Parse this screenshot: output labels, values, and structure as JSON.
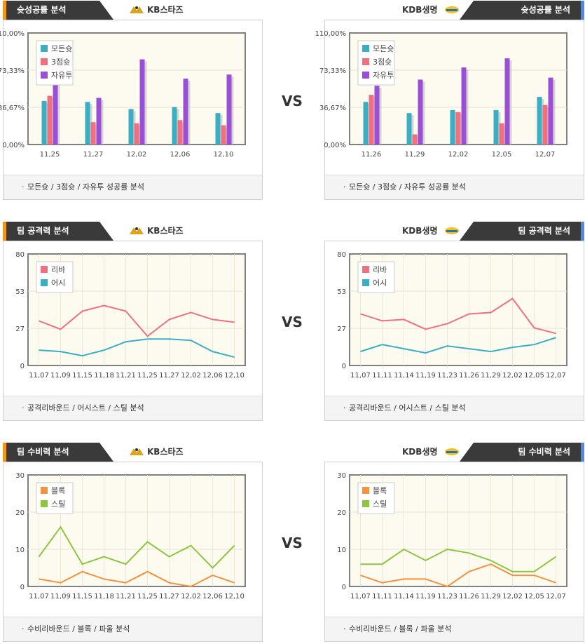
{
  "vs_label": "VS",
  "teams": {
    "left": {
      "name": "KB스타즈",
      "accent": "#f0961e"
    },
    "right": {
      "name": "KDB생명",
      "accent": "#4a8de0"
    }
  },
  "sections": [
    {
      "title": "슛성공률 분석",
      "caption": "모든슛 / 3점슛 / 자유투 성공률 분석",
      "bullet": "·",
      "left": {
        "type": "bar",
        "categories": [
          "11,25",
          "11,27",
          "12,02",
          "12,06",
          "12,10"
        ],
        "series": [
          {
            "name": "모든슛",
            "color": "#3aafc4",
            "values": [
              43,
              42,
              35,
              37,
              31
            ]
          },
          {
            "name": "3점슛",
            "color": "#f07080",
            "values": [
              48,
              22,
              21,
              24,
              19
            ]
          },
          {
            "name": "자유투",
            "color": "#9b4fd6",
            "values": [
              64,
              46,
              84,
              65,
              69
            ]
          }
        ],
        "ylim": [
          0,
          110
        ],
        "yticks": [
          "0,00%",
          "36,67%",
          "73,33%",
          "110,00%"
        ]
      },
      "right": {
        "type": "bar",
        "categories": [
          "11,26",
          "11,29",
          "12,02",
          "12,05",
          "12,07"
        ],
        "series": [
          {
            "name": "모든슛",
            "color": "#3aafc4",
            "values": [
              42,
              31,
              34,
              34,
              47
            ]
          },
          {
            "name": "3점슛",
            "color": "#f07080",
            "values": [
              49,
              10,
              32,
              21,
              39
            ]
          },
          {
            "name": "자유투",
            "color": "#9b4fd6",
            "values": [
              58,
              64,
              76,
              85,
              66
            ]
          }
        ],
        "ylim": [
          0,
          110
        ],
        "yticks": [
          "0,00%",
          "36,67%",
          "73,33%",
          "110,00%"
        ]
      }
    },
    {
      "title": "팀 공격력 분석",
      "caption": "공격리바운드 / 어시스트 / 스틸 분석",
      "bullet": "·",
      "left": {
        "type": "line",
        "categories": [
          "11,07",
          "11,09",
          "11,15",
          "11,18",
          "11,21",
          "11,25",
          "11,27",
          "12,02",
          "12,06",
          "12,10"
        ],
        "series": [
          {
            "name": "리바",
            "color": "#f07080",
            "values": [
              32,
              26,
              39,
              43,
              39,
              21,
              33,
              38,
              33,
              31
            ]
          },
          {
            "name": "어시",
            "color": "#3aafc4",
            "values": [
              11,
              10,
              7,
              11,
              17,
              19,
              19,
              18,
              10,
              6
            ]
          }
        ],
        "ylim": [
          0,
          80
        ],
        "yticks": [
          "0",
          "27",
          "53",
          "80"
        ]
      },
      "right": {
        "type": "line",
        "categories": [
          "11,07",
          "11,11",
          "11,14",
          "11,19",
          "11,23",
          "11,26",
          "11,29",
          "12,02",
          "12,05",
          "12,07"
        ],
        "series": [
          {
            "name": "리바",
            "color": "#f07080",
            "values": [
              37,
              32,
              33,
              26,
              30,
              37,
              38,
              48,
              27,
              23
            ]
          },
          {
            "name": "어시",
            "color": "#3aafc4",
            "values": [
              10,
              15,
              12,
              9,
              14,
              12,
              10,
              13,
              15,
              20
            ]
          }
        ],
        "ylim": [
          0,
          80
        ],
        "yticks": [
          "0",
          "27",
          "53",
          "80"
        ]
      }
    },
    {
      "title": "팀 수비력 분석",
      "caption": "수비리바운드 / 블록 / 파울 분석",
      "bullet": "·",
      "left": {
        "type": "line",
        "categories": [
          "11,07",
          "11,09",
          "11,15",
          "11,18",
          "11,21",
          "11,25",
          "11,27",
          "12,02",
          "12,06",
          "12,10"
        ],
        "series": [
          {
            "name": "블록",
            "color": "#f5923e",
            "values": [
              2,
              1,
              4,
              2,
              1,
              4,
              1,
              0,
              3,
              1
            ]
          },
          {
            "name": "스틸",
            "color": "#8cc63f",
            "values": [
              8,
              16,
              6,
              8,
              6,
              12,
              8,
              11,
              5,
              11
            ]
          }
        ],
        "ylim": [
          0,
          30
        ],
        "yticks": [
          "0",
          "10",
          "20",
          "30"
        ]
      },
      "right": {
        "type": "line",
        "categories": [
          "11,07",
          "11,11",
          "11,14",
          "11,19",
          "11,23",
          "11,26",
          "11,29",
          "12,02",
          "12,05",
          "12,07"
        ],
        "series": [
          {
            "name": "블록",
            "color": "#f5923e",
            "values": [
              3,
              1,
              2,
              2,
              0,
              4,
              6,
              3,
              3,
              1
            ]
          },
          {
            "name": "스틸",
            "color": "#8cc63f",
            "values": [
              6,
              6,
              10,
              7,
              10,
              9,
              7,
              4,
              4,
              8
            ]
          }
        ],
        "ylim": [
          0,
          30
        ],
        "yticks": [
          "0",
          "10",
          "20",
          "30"
        ]
      }
    }
  ]
}
